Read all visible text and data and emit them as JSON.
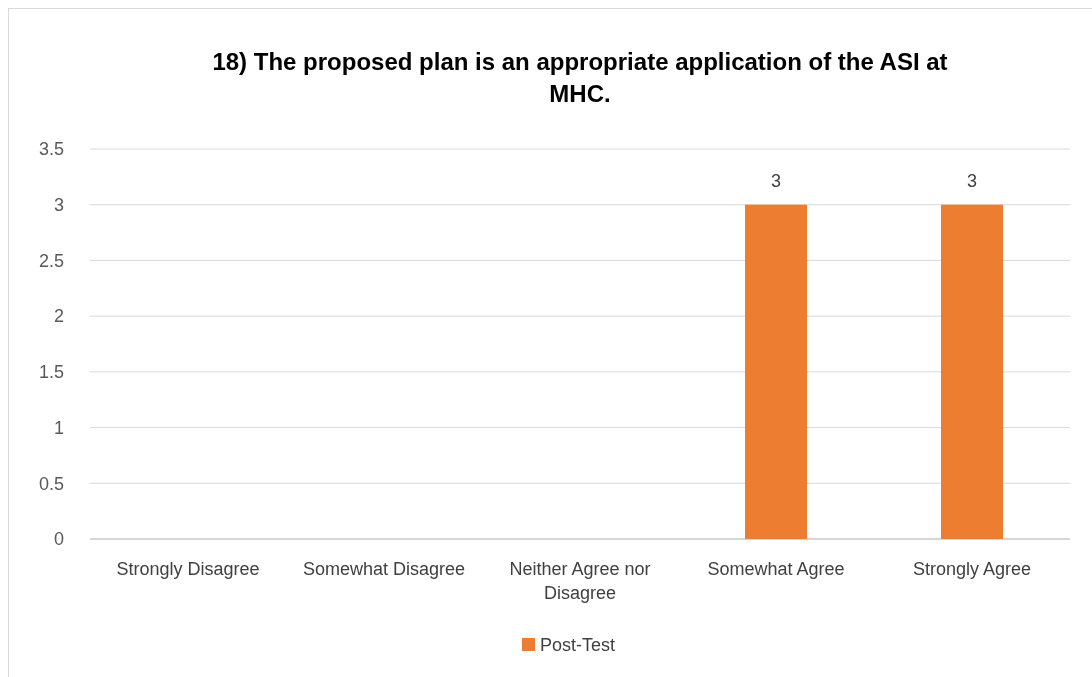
{
  "chart_data": {
    "type": "bar",
    "title": "18) The proposed plan is an appropriate application of the ASI at MHC.",
    "categories": [
      "Strongly Disagree",
      "Somewhat Disagree",
      "Neither Agree nor Disagree",
      "Somewhat Agree",
      "Strongly Agree"
    ],
    "series": [
      {
        "name": "Post-Test",
        "color": "#ed7d31",
        "values": [
          null,
          null,
          null,
          3,
          3
        ],
        "value_labels": [
          null,
          null,
          null,
          "3",
          "3"
        ]
      }
    ],
    "ylim": [
      0,
      3.5
    ],
    "yticks": [
      0,
      0.5,
      1,
      1.5,
      2,
      2.5,
      3,
      3.5
    ],
    "grid": "y",
    "legend": "bottom"
  }
}
